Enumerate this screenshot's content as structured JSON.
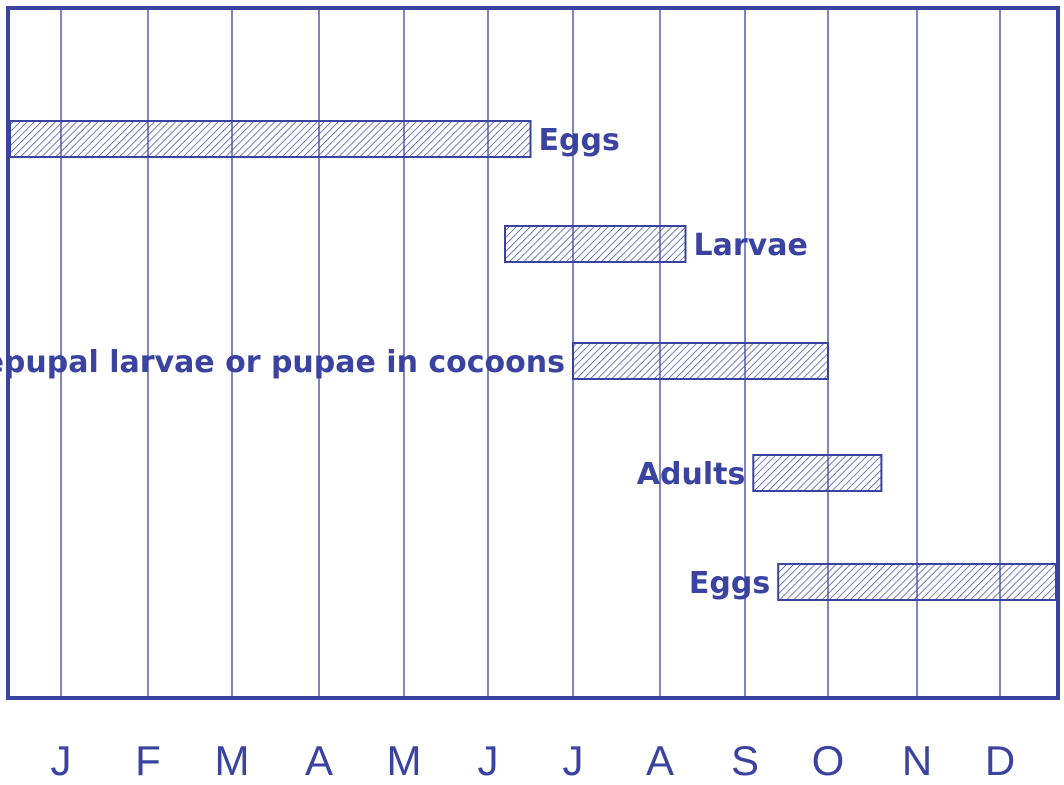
{
  "chart_data": {
    "type": "bar",
    "title": "",
    "xlabel": "",
    "ylabel": "",
    "categories": [
      "J",
      "F",
      "M",
      "A",
      "M",
      "J",
      "J",
      "A",
      "S",
      "O",
      "N",
      "D"
    ],
    "xlim": [
      0,
      12
    ],
    "grid": true,
    "bar_fill": "hatched",
    "colors": {
      "ink": "#3a44a0",
      "hatch": "#3a44a0",
      "background": "#ffffff"
    },
    "series": [
      {
        "label": "Eggs",
        "start": 0.0,
        "end": 6.0,
        "label_side": "right"
      },
      {
        "label": "Larvae",
        "start": 5.7,
        "end": 7.8,
        "label_side": "right"
      },
      {
        "label": "Prepupal larvae or pupae in cocoons",
        "start": 6.5,
        "end": 9.5,
        "label_side": "left"
      },
      {
        "label": "Adults",
        "start": 8.6,
        "end": 10.1,
        "label_side": "left"
      },
      {
        "label": "Eggs",
        "start": 8.9,
        "end": 12.0,
        "label_side": "left"
      }
    ]
  }
}
